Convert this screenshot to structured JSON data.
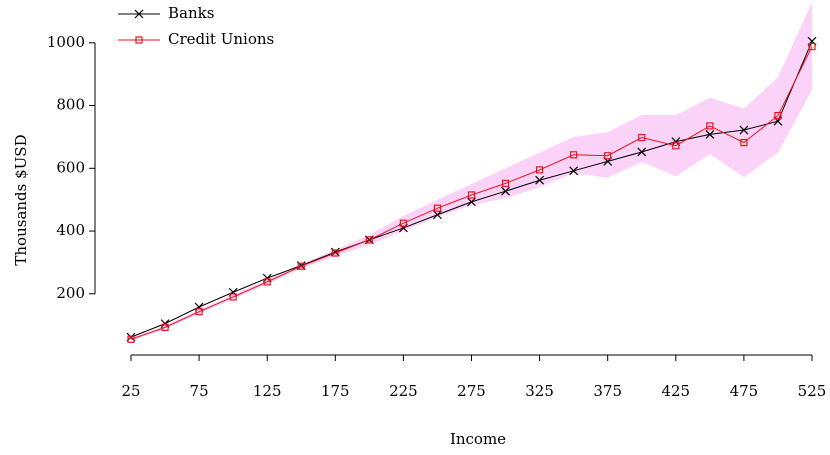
{
  "chart_data": {
    "type": "line",
    "x_label": "Income",
    "y_label": "Thousands $USD",
    "x": [
      25,
      50,
      75,
      100,
      125,
      150,
      175,
      200,
      225,
      250,
      275,
      300,
      325,
      350,
      375,
      400,
      425,
      450,
      475,
      500,
      525
    ],
    "series": [
      {
        "name": "Banks",
        "color": "#000000",
        "marker": "x",
        "values": [
          62,
          105,
          158,
          205,
          250,
          290,
          333,
          372,
          410,
          452,
          493,
          527,
          562,
          592,
          622,
          652,
          685,
          708,
          722,
          750,
          1005
        ]
      },
      {
        "name": "Credit Unions",
        "color": "#e8141c",
        "marker": "square",
        "band_color": "#fbd3f8",
        "values": [
          55,
          93,
          143,
          190,
          238,
          288,
          330,
          372,
          425,
          473,
          515,
          552,
          595,
          643,
          640,
          698,
          672,
          735,
          682,
          768,
          988
        ],
        "band": {
          "lower": [
            50,
            88,
            137,
            183,
            231,
            280,
            320,
            356,
            400,
            445,
            482,
            505,
            540,
            585,
            570,
            620,
            575,
            645,
            572,
            650,
            850
          ],
          "upper": [
            60,
            98,
            150,
            197,
            245,
            296,
            340,
            388,
            448,
            500,
            550,
            600,
            650,
            700,
            715,
            770,
            770,
            825,
            790,
            890,
            1130
          ]
        }
      }
    ],
    "xlim": [
      25,
      525
    ],
    "xticks": [
      25,
      75,
      125,
      175,
      225,
      275,
      325,
      375,
      425,
      475,
      525
    ],
    "ylim": [
      5,
      1130
    ],
    "yticks": [
      200,
      400,
      600,
      800,
      1000
    ],
    "legend": "top-left"
  }
}
